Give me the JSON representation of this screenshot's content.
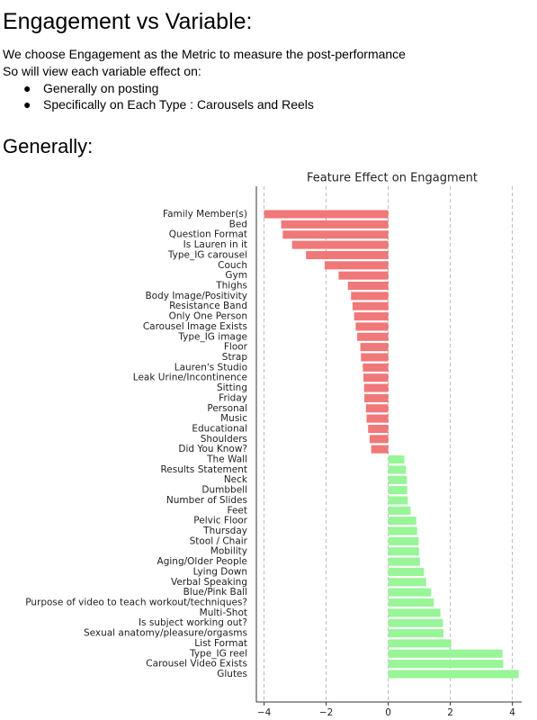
{
  "header": {
    "title": "Engagement vs Variable:"
  },
  "intro": [
    "We choose Engagement as the Metric to measure the post-performance",
    "So will view each variable effect on:"
  ],
  "bullets": [
    "Generally on posting",
    "Specifically on Each Type : Carousels and Reels"
  ],
  "section": "Generally:",
  "chart_data": {
    "type": "hbar",
    "title": "Feature Effect on Engagment",
    "categories": [
      "Family Member(s)",
      "Bed",
      "Question Format",
      "Is Lauren in it",
      "Type_IG carousel",
      "Couch",
      "Gym",
      "Thighs",
      "Body Image/Positivity",
      "Resistance Band",
      "Only One Person",
      "Carousel Image Exists",
      "Type_IG image",
      "Floor",
      "Strap",
      "Lauren's Studio",
      "Leak Urine/Incontinence",
      "Sitting",
      "Friday",
      "Personal",
      "Music",
      "Educational",
      "Shoulders",
      "Did You Know?",
      "The Wall",
      "Results Statement",
      "Neck",
      "Dumbbell",
      "Number of Slides",
      "Feet",
      "Pelvic Floor",
      "Thursday",
      "Stool / Chair",
      "Mobility",
      "Aging/Older People",
      "Lying Down",
      "Verbal Speaking",
      "Blue/Pink Ball",
      "Purpose of video to teach workout/techniques?",
      "Multi-Shot",
      "Is subject working out?",
      "Sexual anatomy/pleasure/orgasms",
      "List Format",
      "Type_IG reel",
      "Carousel Video Exists",
      "Glutes"
    ],
    "values": [
      -4.0,
      -3.45,
      -3.4,
      -3.1,
      -2.65,
      -2.05,
      -1.6,
      -1.3,
      -1.2,
      -1.15,
      -1.1,
      -1.05,
      -1.0,
      -0.9,
      -0.88,
      -0.82,
      -0.8,
      -0.78,
      -0.77,
      -0.72,
      -0.7,
      -0.65,
      -0.6,
      -0.55,
      0.52,
      0.57,
      0.6,
      0.61,
      0.63,
      0.72,
      0.9,
      0.93,
      0.98,
      0.99,
      1.02,
      1.15,
      1.22,
      1.38,
      1.47,
      1.68,
      1.76,
      1.78,
      2.03,
      3.68,
      3.7,
      4.2
    ],
    "negative_color": "#f07878",
    "positive_color": "#98f598",
    "xlim": [
      -4.25,
      4.3
    ],
    "xticks": [
      {
        "value": -4,
        "label": "−4"
      },
      {
        "value": -2,
        "label": "−2"
      },
      0,
      2,
      4
    ],
    "grid": true
  }
}
